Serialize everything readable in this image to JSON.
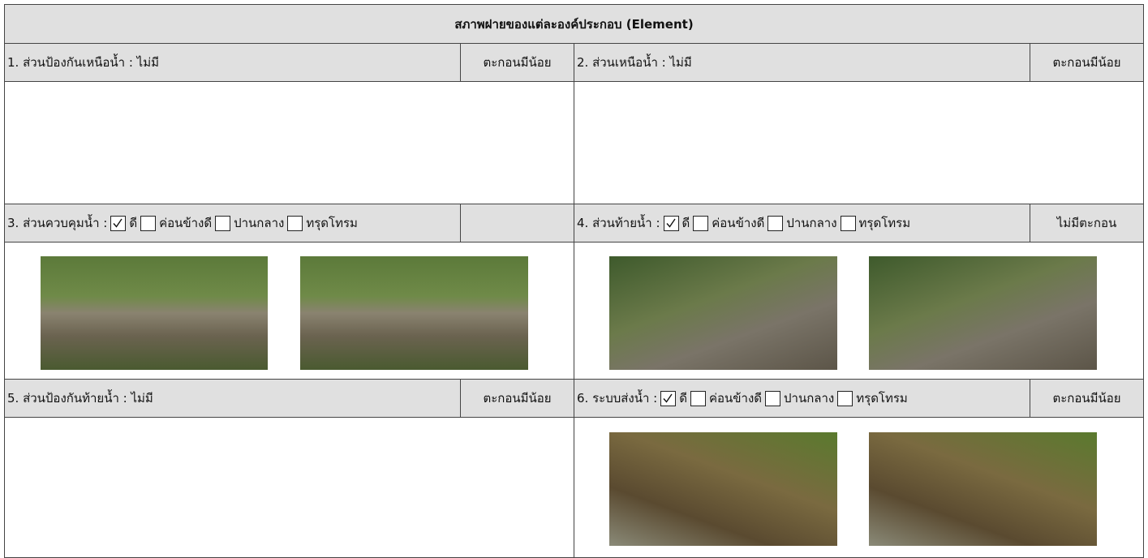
{
  "header": {
    "title": "สภาพฝายของแต่ละองค์ประกอบ (Element)"
  },
  "sections": [
    {
      "label": "1. ส่วนป้องกันเหนือน้ำ : ไม่มี",
      "status": "ตะกอนมีน้อย"
    },
    {
      "label": "2. ส่วนเหนือน้ำ : ไม่มี",
      "status": "ตะกอนมีน้อย"
    },
    {
      "label": "3. ส่วนควบคุมน้ำ :",
      "options": [
        {
          "text": "ดี",
          "checked": true
        },
        {
          "text": "ค่อนข้างดี",
          "checked": false
        },
        {
          "text": "ปานกลาง",
          "checked": false
        },
        {
          "text": "ทรุดโทรม",
          "checked": false
        }
      ]
    },
    {
      "label": "4. ส่วนท้ายน้ำ :",
      "options": [
        {
          "text": "ดี",
          "checked": true
        },
        {
          "text": "ค่อนข้างดี",
          "checked": false
        },
        {
          "text": "ปานกลาง",
          "checked": false
        },
        {
          "text": "ทรุดโทรม",
          "checked": false
        }
      ],
      "status": "ไม่มีตะกอน"
    },
    {
      "label": "5. ส่วนป้องกันท้ายน้ำ : ไม่มี",
      "status": "ตะกอนมีน้อย"
    },
    {
      "label": "6. ระบบส่งน้ำ :",
      "options": [
        {
          "text": "ดี",
          "checked": true
        },
        {
          "text": "ค่อนข้างดี",
          "checked": false
        },
        {
          "text": "ปานกลาง",
          "checked": false
        },
        {
          "text": "ทรุดโทรม",
          "checked": false
        }
      ],
      "status": "ตะกอนมีน้อย"
    }
  ]
}
